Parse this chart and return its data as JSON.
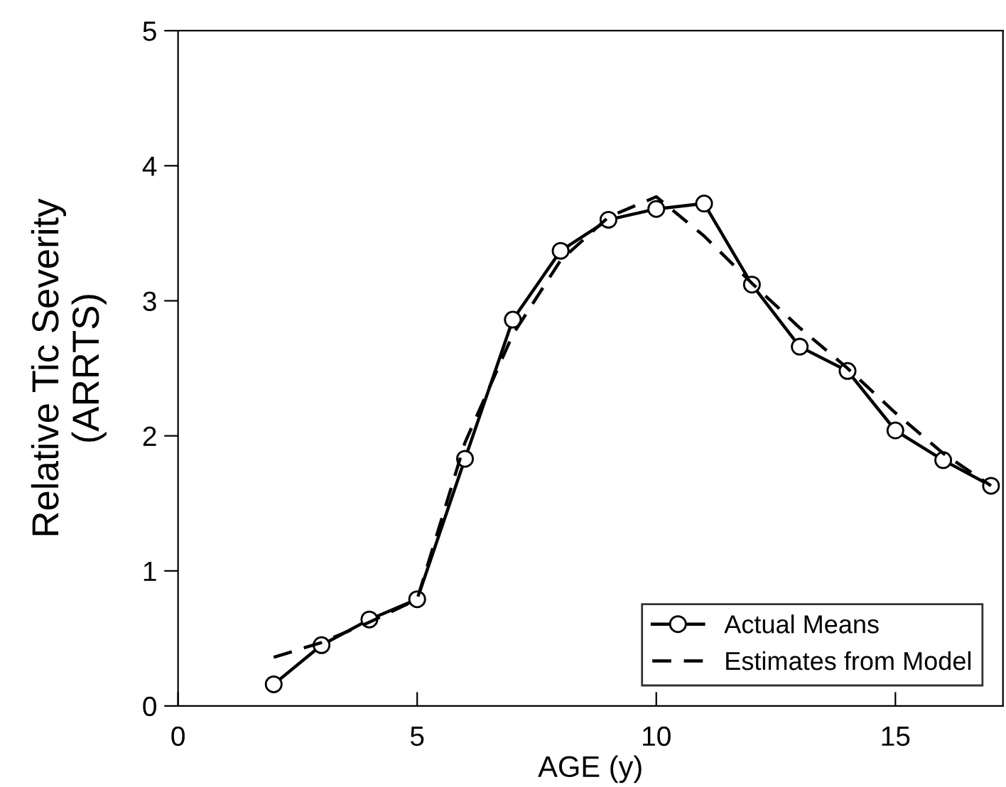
{
  "chart_data": {
    "type": "line",
    "xlabel": "AGE (y)",
    "ylabel": "Relative Tic Severity\n(ARRTS)",
    "xlim": [
      0,
      17.25
    ],
    "xticks": [
      0,
      5,
      10,
      15
    ],
    "ylim": [
      0,
      5
    ],
    "yticks": [
      0,
      1,
      2,
      3,
      4,
      5
    ],
    "grid": false,
    "legend": "bottom right",
    "series": [
      {
        "name": "Actual Means",
        "color": "#000000",
        "marker": "circle",
        "line_style": "solid",
        "x": [
          2,
          3,
          4,
          5,
          6,
          7,
          8,
          9,
          10,
          11,
          12,
          13,
          14,
          15,
          16,
          17
        ],
        "values": [
          0.16,
          0.45,
          0.64,
          0.79,
          1.83,
          2.86,
          3.37,
          3.6,
          3.68,
          3.72,
          3.12,
          2.66,
          2.48,
          2.04,
          1.82,
          1.63
        ]
      },
      {
        "name": "Estimates from Model",
        "color": "#000000",
        "marker": "none",
        "line_style": "dashed",
        "x": [
          2,
          3,
          4,
          5,
          6,
          7,
          8,
          9,
          10,
          11,
          12,
          13,
          14,
          15,
          16,
          17
        ],
        "values": [
          0.36,
          0.47,
          0.62,
          0.79,
          1.95,
          2.75,
          3.3,
          3.62,
          3.77,
          3.48,
          3.13,
          2.8,
          2.5,
          2.17,
          1.87,
          1.63
        ]
      }
    ]
  }
}
